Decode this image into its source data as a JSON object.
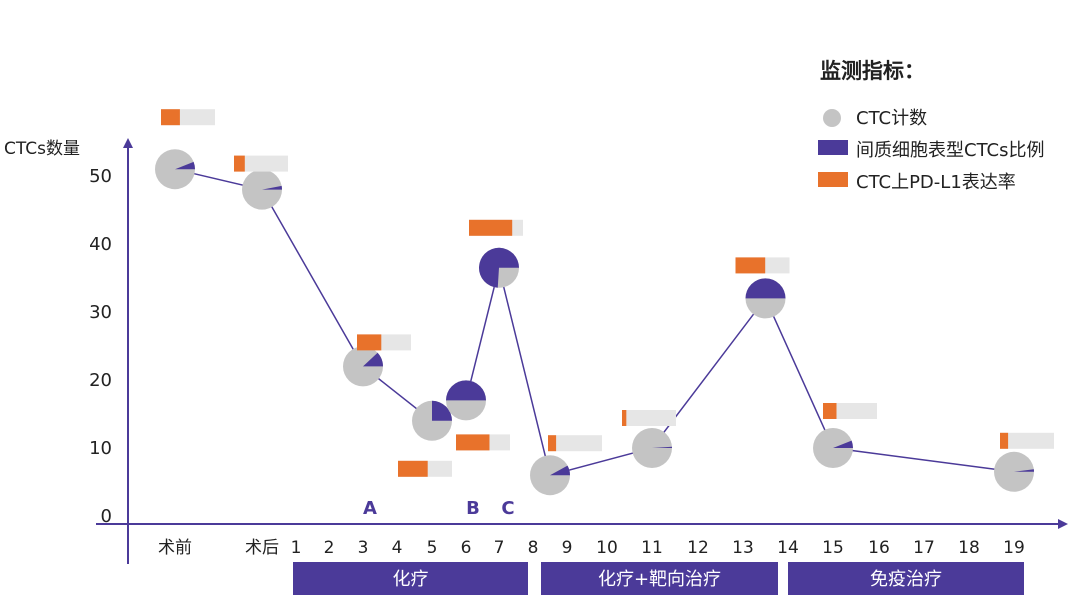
{
  "chart_data": {
    "type": "scatter",
    "ylabel": "CTCs数量",
    "ylim": [
      0,
      55
    ],
    "yticks": [
      0,
      10,
      20,
      30,
      40,
      50
    ],
    "x_categories": [
      "术前",
      "术后",
      "1",
      "2",
      "3",
      "4",
      "5",
      "6",
      "7",
      "8",
      "9",
      "10",
      "11",
      "12",
      "13",
      "14",
      "15",
      "16",
      "17",
      "18",
      "19"
    ],
    "legend": {
      "title": "监测指标：",
      "items": [
        "CTC计数",
        "间质细胞表型CTCs比例",
        "CTC上PD-L1表达率"
      ]
    },
    "annotations": [
      {
        "label": "A",
        "x": "3"
      },
      {
        "label": "B",
        "x": "6"
      },
      {
        "label": "C",
        "x": "7"
      }
    ],
    "phases": [
      {
        "label": "化疗",
        "from": "1",
        "to": "8"
      },
      {
        "label": "化疗+靶向治疗",
        "from": "9",
        "to": "14"
      },
      {
        "label": "免疫治疗",
        "from": "15",
        "to": "19"
      }
    ],
    "points": [
      {
        "x": "术前",
        "ctc": 51,
        "mesenchymal_ratio": 0.06,
        "pdl1_rate": 0.35
      },
      {
        "x": "术后",
        "ctc": 48,
        "mesenchymal_ratio": 0.03,
        "pdl1_rate": 0.2
      },
      {
        "x": "3",
        "ctc": 22,
        "mesenchymal_ratio": 0.12,
        "pdl1_rate": 0.45
      },
      {
        "x": "5",
        "ctc": 14,
        "mesenchymal_ratio": 0.25,
        "pdl1_rate": 0.55
      },
      {
        "x": "6",
        "ctc": 17,
        "mesenchymal_ratio": 0.5,
        "pdl1_rate": 0.62
      },
      {
        "x": "7",
        "ctc": 36.5,
        "mesenchymal_ratio": 0.74,
        "pdl1_rate": 0.8
      },
      {
        "x": "8.5",
        "ctc": 6,
        "mesenchymal_ratio": 0.08,
        "pdl1_rate": 0.15
      },
      {
        "x": "11",
        "ctc": 10,
        "mesenchymal_ratio": 0.01,
        "pdl1_rate": 0.08
      },
      {
        "x": "13.5",
        "ctc": 32,
        "mesenchymal_ratio": 0.5,
        "pdl1_rate": 0.55
      },
      {
        "x": "15",
        "ctc": 10,
        "mesenchymal_ratio": 0.06,
        "pdl1_rate": 0.25
      },
      {
        "x": "19",
        "ctc": 6.5,
        "mesenchymal_ratio": 0.02,
        "pdl1_rate": 0.15
      }
    ],
    "colors": {
      "axis": "#4b3a99",
      "line": "#4b3a99",
      "ctc_pie": "#c4c4c4",
      "mesenchymal": "#4b3a99",
      "pdl1": "#e8722b",
      "bar_track": "#e6e6e6",
      "phase_bar": "#4b3a99",
      "phase_text": "#ffffff",
      "text": "#222222",
      "annotation": "#4b3a99"
    }
  }
}
